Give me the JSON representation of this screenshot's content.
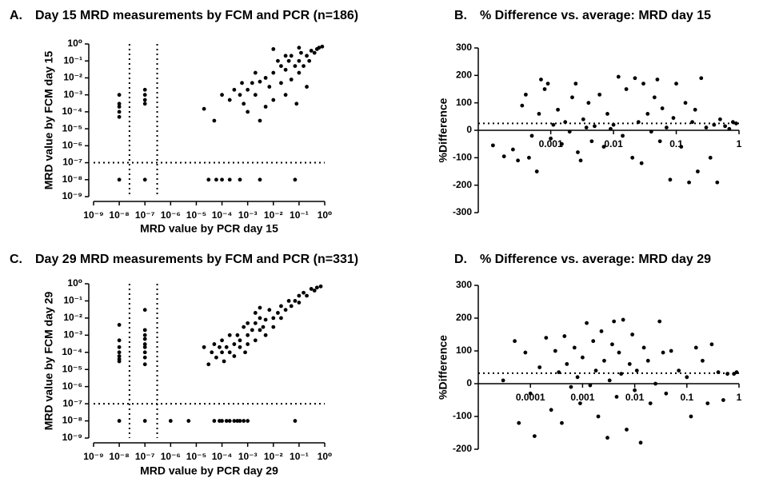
{
  "chart_data": [
    {
      "type": "scatter",
      "panel": "A.",
      "title": "Day 15 MRD measurements by FCM and PCR (n=186)",
      "x_label": "MRD value by PCR day 15",
      "y_label": "MRD value by FCM day 15",
      "log_x": true,
      "log_y": true,
      "color": "#000000",
      "xlim": [
        1e-09,
        1
      ],
      "ylim": [
        1e-09,
        1
      ],
      "xticks": [
        {
          "value": 1e-09,
          "label": "10⁻⁹"
        },
        {
          "value": 1e-08,
          "label": "10⁻⁸"
        },
        {
          "value": 1e-07,
          "label": "10⁻⁷"
        },
        {
          "value": 1e-06,
          "label": "10⁻⁶"
        },
        {
          "value": 1e-05,
          "label": "10⁻⁵"
        },
        {
          "value": 0.0001,
          "label": "10⁻⁴"
        },
        {
          "value": 0.001,
          "label": "10⁻³"
        },
        {
          "value": 0.01,
          "label": "10⁻²"
        },
        {
          "value": 0.1,
          "label": "10⁻¹"
        },
        {
          "value": 1,
          "label": "10⁰"
        }
      ],
      "yticks": [
        {
          "value": 1e-09,
          "label": "10⁻⁹"
        },
        {
          "value": 1e-08,
          "label": "10⁻⁸"
        },
        {
          "value": 1e-07,
          "label": "10⁻⁷"
        },
        {
          "value": 1e-06,
          "label": "10⁻⁶"
        },
        {
          "value": 1e-05,
          "label": "10⁻⁵"
        },
        {
          "value": 0.0001,
          "label": "10⁻⁴"
        },
        {
          "value": 0.001,
          "label": "10⁻³"
        },
        {
          "value": 0.01,
          "label": "10⁻²"
        },
        {
          "value": 0.1,
          "label": "10⁻¹"
        },
        {
          "value": 1,
          "label": "10⁰"
        }
      ],
      "hlines": [
        1e-07
      ],
      "vlines": [
        2.5e-08,
        3e-07
      ],
      "x": [
        2e-05,
        5e-05,
        0.0001,
        0.0002,
        0.0003,
        0.0005,
        0.0007,
        0.001,
        0.001,
        0.0015,
        0.002,
        0.003,
        0.003,
        0.005,
        0.005,
        0.007,
        0.01,
        0.01,
        0.015,
        0.02,
        0.02,
        0.03,
        0.03,
        0.04,
        0.05,
        0.05,
        0.07,
        0.08,
        0.1,
        0.1,
        0.12,
        0.15,
        0.2,
        0.2,
        0.25,
        0.3,
        0.4,
        0.5,
        0.6,
        0.8,
        0.01,
        0.002,
        0.0006,
        0.03,
        0.1,
        1e-08,
        1e-08,
        1e-08,
        1e-08,
        1e-08,
        1e-08,
        1e-07,
        1e-07,
        1e-07,
        1e-07,
        1e-07,
        3e-05,
        6e-05,
        0.0001,
        0.0002,
        0.0005,
        0.003,
        0.07
      ],
      "values": [
        0.00015,
        3e-05,
        0.001,
        0.0005,
        0.002,
        0.001,
        0.0003,
        0.002,
        0.0001,
        0.005,
        0.001,
        0.006,
        3e-05,
        0.01,
        0.0002,
        0.003,
        0.02,
        0.0005,
        0.1,
        0.05,
        0.005,
        0.03,
        0.001,
        0.1,
        0.008,
        0.2,
        0.05,
        0.0003,
        0.1,
        0.02,
        0.3,
        0.05,
        0.2,
        0.003,
        0.1,
        0.4,
        0.3,
        0.5,
        0.6,
        0.7,
        0.5,
        0.02,
        0.005,
        0.2,
        0.6,
        0.001,
        0.0003,
        0.0002,
        0.0001,
        5e-05,
        1e-08,
        0.002,
        0.001,
        0.0005,
        0.0003,
        1e-08,
        1e-08,
        1e-08,
        1e-08,
        1e-08,
        1e-08,
        1e-08,
        1e-08
      ]
    },
    {
      "type": "scatter",
      "panel": "B.",
      "title": "% Difference vs. average: MRD day 15",
      "y_label": "%Difference",
      "log_x": true,
      "log_y": false,
      "color": "#000000",
      "xlim": [
        7e-05,
        1
      ],
      "ylim": [
        -300,
        300
      ],
      "xticks": [
        0.001,
        0.01,
        0.1,
        1
      ],
      "yticks": [
        300,
        200,
        100,
        0,
        -100,
        -200,
        -300
      ],
      "hlines": [
        25
      ],
      "x": [
        0.00012,
        0.00018,
        0.00025,
        0.0003,
        0.00035,
        0.0004,
        0.00045,
        0.0005,
        0.0006,
        0.00065,
        0.0007,
        0.0008,
        0.0009,
        0.001,
        0.0011,
        0.0013,
        0.0015,
        0.0017,
        0.002,
        0.0022,
        0.0025,
        0.0027,
        0.003,
        0.0033,
        0.0037,
        0.004,
        0.0045,
        0.005,
        0.006,
        0.007,
        0.008,
        0.009,
        0.01,
        0.012,
        0.014,
        0.016,
        0.02,
        0.022,
        0.025,
        0.028,
        0.03,
        0.035,
        0.04,
        0.045,
        0.05,
        0.055,
        0.06,
        0.07,
        0.08,
        0.09,
        0.1,
        0.12,
        0.14,
        0.16,
        0.18,
        0.2,
        0.22,
        0.25,
        0.3,
        0.35,
        0.4,
        0.45,
        0.5,
        0.6,
        0.7,
        0.8,
        0.9
      ],
      "values": [
        -55,
        -95,
        -70,
        -110,
        90,
        130,
        -100,
        -20,
        -150,
        60,
        185,
        150,
        170,
        -30,
        20,
        75,
        -50,
        30,
        -5,
        120,
        170,
        -80,
        -110,
        40,
        10,
        100,
        -40,
        15,
        130,
        -60,
        60,
        5,
        20,
        195,
        -20,
        150,
        -100,
        190,
        30,
        -120,
        170,
        60,
        -5,
        120,
        185,
        -40,
        80,
        10,
        -180,
        45,
        170,
        -60,
        100,
        -190,
        30,
        75,
        -150,
        190,
        10,
        -100,
        20,
        -190,
        40,
        15,
        5,
        30,
        25
      ]
    },
    {
      "type": "scatter",
      "panel": "C.",
      "title": "Day 29 MRD measurements by FCM and PCR (n=331)",
      "x_label": "MRD value by PCR day 29",
      "y_label": "MRD value by FCM day 29",
      "log_x": true,
      "log_y": true,
      "color": "#000000",
      "xlim": [
        1e-09,
        1
      ],
      "ylim": [
        1e-09,
        1
      ],
      "xticks": [
        {
          "value": 1e-09,
          "label": "10⁻⁹"
        },
        {
          "value": 1e-08,
          "label": "10⁻⁸"
        },
        {
          "value": 1e-07,
          "label": "10⁻⁷"
        },
        {
          "value": 1e-06,
          "label": "10⁻⁶"
        },
        {
          "value": 1e-05,
          "label": "10⁻⁵"
        },
        {
          "value": 0.0001,
          "label": "10⁻⁴"
        },
        {
          "value": 0.001,
          "label": "10⁻³"
        },
        {
          "value": 0.01,
          "label": "10⁻²"
        },
        {
          "value": 0.1,
          "label": "10⁻¹"
        },
        {
          "value": 1,
          "label": "10⁰"
        }
      ],
      "yticks": [
        {
          "value": 1e-09,
          "label": "10⁻⁹"
        },
        {
          "value": 1e-08,
          "label": "10⁻⁸"
        },
        {
          "value": 1e-07,
          "label": "10⁻⁷"
        },
        {
          "value": 1e-06,
          "label": "10⁻⁶"
        },
        {
          "value": 1e-05,
          "label": "10⁻⁵"
        },
        {
          "value": 0.0001,
          "label": "10⁻⁴"
        },
        {
          "value": 0.001,
          "label": "10⁻³"
        },
        {
          "value": 0.01,
          "label": "10⁻²"
        },
        {
          "value": 0.1,
          "label": "10⁻¹"
        },
        {
          "value": 1,
          "label": "10⁰"
        }
      ],
      "hlines": [
        1e-07
      ],
      "vlines": [
        2.5e-08,
        3e-07
      ],
      "x": [
        2e-05,
        3e-05,
        4e-05,
        5e-05,
        6e-05,
        8e-05,
        0.0001,
        0.0001,
        0.00012,
        0.00015,
        0.0002,
        0.0002,
        0.0003,
        0.0003,
        0.0004,
        0.0005,
        0.0005,
        0.0007,
        0.0008,
        0.001,
        0.001,
        0.0015,
        0.002,
        0.002,
        0.003,
        0.003,
        0.004,
        0.005,
        0.005,
        0.007,
        0.01,
        0.01,
        0.015,
        0.02,
        0.02,
        0.03,
        0.04,
        0.05,
        0.07,
        0.1,
        0.1,
        0.15,
        0.2,
        0.3,
        0.4,
        0.5,
        0.7,
        0.003,
        0.002,
        0.001,
        1e-08,
        1e-08,
        1e-08,
        1e-08,
        1e-08,
        1e-08,
        1e-08,
        1e-08,
        1e-07,
        1e-07,
        1e-07,
        1e-07,
        1e-07,
        1e-07,
        1e-07,
        1e-07,
        1e-07,
        1e-07,
        1e-06,
        5e-06,
        5e-05,
        8e-05,
        0.0001,
        0.00015,
        0.0002,
        0.0003,
        0.0004,
        0.0005,
        0.0007,
        0.001,
        0.07
      ],
      "values": [
        0.0002,
        2e-05,
        0.0001,
        0.0003,
        5e-05,
        0.0002,
        0.0001,
        0.0005,
        3e-05,
        0.0002,
        0.001,
        0.0001,
        0.0003,
        6e-05,
        0.001,
        0.0002,
        0.0005,
        0.003,
        0.0001,
        0.001,
        0.0003,
        0.002,
        0.005,
        0.0005,
        0.002,
        0.01,
        0.003,
        0.008,
        0.001,
        0.03,
        0.01,
        0.003,
        0.02,
        0.05,
        0.01,
        0.03,
        0.1,
        0.05,
        0.1,
        0.2,
        0.08,
        0.3,
        0.2,
        0.5,
        0.4,
        0.6,
        0.7,
        0.04,
        0.02,
        0.005,
        0.004,
        0.0005,
        0.0002,
        0.0001,
        6e-05,
        4e-05,
        3e-05,
        1e-08,
        0.03,
        0.002,
        0.001,
        0.0006,
        0.0003,
        0.0002,
        0.0001,
        5e-05,
        2e-05,
        1e-08,
        1e-08,
        1e-08,
        1e-08,
        1e-08,
        1e-08,
        1e-08,
        1e-08,
        1e-08,
        1e-08,
        1e-08,
        1e-08,
        1e-08,
        1e-08
      ]
    },
    {
      "type": "scatter",
      "panel": "D.",
      "title": "% Difference vs. average: MRD day 29",
      "y_label": "%Difference",
      "log_x": true,
      "log_y": false,
      "color": "#000000",
      "xlim": [
        1e-05,
        1
      ],
      "ylim": [
        -200,
        300
      ],
      "xticks": [
        0.0001,
        0.001,
        0.01,
        0.1,
        1
      ],
      "yticks": [
        300,
        200,
        100,
        0,
        -100,
        -200
      ],
      "hlines": [
        32
      ],
      "x": [
        3e-05,
        5e-05,
        6e-05,
        8e-05,
        0.0001,
        0.00012,
        0.00015,
        0.0002,
        0.00025,
        0.0003,
        0.00035,
        0.0004,
        0.00045,
        0.0005,
        0.0006,
        0.0007,
        0.0008,
        0.0009,
        0.001,
        0.0012,
        0.0014,
        0.0016,
        0.0018,
        0.002,
        0.0023,
        0.0026,
        0.003,
        0.0033,
        0.0037,
        0.004,
        0.0045,
        0.005,
        0.0055,
        0.006,
        0.007,
        0.008,
        0.009,
        0.01,
        0.011,
        0.013,
        0.015,
        0.018,
        0.02,
        0.025,
        0.03,
        0.035,
        0.04,
        0.05,
        0.07,
        0.1,
        0.12,
        0.15,
        0.2,
        0.25,
        0.3,
        0.4,
        0.5,
        0.6,
        0.8,
        0.9
      ],
      "values": [
        10,
        130,
        -120,
        95,
        -30,
        -160,
        50,
        140,
        -80,
        100,
        35,
        -120,
        145,
        60,
        -10,
        110,
        20,
        -60,
        80,
        185,
        -5,
        130,
        40,
        -100,
        160,
        70,
        -165,
        10,
        120,
        190,
        -40,
        95,
        30,
        195,
        -140,
        60,
        150,
        -20,
        40,
        -180,
        110,
        70,
        -60,
        0,
        190,
        95,
        -30,
        100,
        40,
        20,
        -100,
        110,
        70,
        -60,
        120,
        35,
        -50,
        30,
        30,
        35
      ]
    }
  ]
}
